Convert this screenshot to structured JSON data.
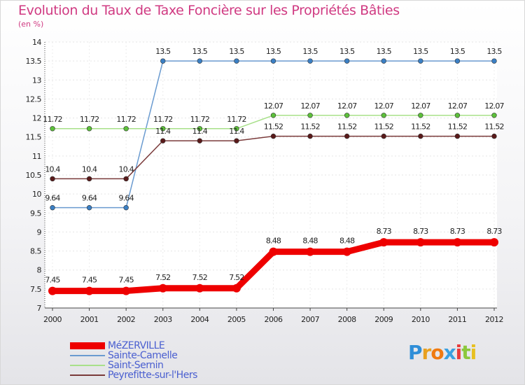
{
  "title": "Evolution du Taux de Taxe Foncière sur les Propriétés Bâties",
  "subtitle": "(en %)",
  "logo": {
    "letters": [
      "P",
      "r",
      "o",
      "x",
      "i",
      "t",
      "i"
    ],
    "colors": [
      "#2f8ed8",
      "#e8a020",
      "#f07a10",
      "#3aa0e0",
      "#e83c3c",
      "#8cc83c",
      "#e8c020"
    ]
  },
  "chart_data": {
    "type": "line",
    "title": "Evolution du Taux de Taxe Foncière sur les Propriétés Bâties",
    "ylabel": "(en %)",
    "xlabel": "",
    "ylim": [
      7,
      14
    ],
    "yticks": [
      "7",
      "7.5",
      "8",
      "8.5",
      "9",
      "9.5",
      "10",
      "10.5",
      "11",
      "11.5",
      "12",
      "12.5",
      "13",
      "13.5",
      "14"
    ],
    "x": [
      "2000",
      "2001",
      "2002",
      "2003",
      "2004",
      "2005",
      "2006",
      "2007",
      "2008",
      "2009",
      "2010",
      "2011",
      "2012"
    ],
    "grid": true,
    "legend": "bottom-left",
    "series": [
      {
        "name": "Sainte-Camelle",
        "color": "#6a9bd0",
        "marker": "#3a7fc4",
        "width": "thin",
        "values": [
          9.64,
          9.64,
          9.64,
          13.5,
          13.5,
          13.5,
          13.5,
          13.5,
          13.5,
          13.5,
          13.5,
          13.5,
          13.5
        ],
        "labels": [
          "9.64",
          "9.64",
          "9.64",
          "13.5",
          "13.5",
          "13.5",
          "13.5",
          "13.5",
          "13.5",
          "13.5",
          "13.5",
          "13.5",
          "13.5"
        ]
      },
      {
        "name": "Saint-Sernin",
        "color": "#a8e08a",
        "marker": "#5cc03a",
        "width": "thin",
        "values": [
          11.72,
          11.72,
          11.72,
          11.72,
          11.72,
          11.72,
          12.07,
          12.07,
          12.07,
          12.07,
          12.07,
          12.07,
          12.07
        ],
        "labels": [
          "11.72",
          "11.72",
          "11.72",
          "11.72",
          "11.72",
          "11.72",
          "12.07",
          "12.07",
          "12.07",
          "12.07",
          "12.07",
          "12.07",
          "12.07"
        ]
      },
      {
        "name": "Peyrefitte-sur-l'Hers",
        "color": "#7a3a3a",
        "marker": "#5a1a1a",
        "width": "thin",
        "values": [
          10.4,
          10.4,
          10.4,
          11.4,
          11.4,
          11.4,
          11.52,
          11.52,
          11.52,
          11.52,
          11.52,
          11.52,
          11.52
        ],
        "labels": [
          "10.4",
          "10.4",
          "10.4",
          "11.4",
          "11.4",
          "11.4",
          "11.52",
          "11.52",
          "11.52",
          "11.52",
          "11.52",
          "11.52",
          "11.52"
        ]
      },
      {
        "name": "MéZERVILLE",
        "color": "#ee0000",
        "marker": "#ee0000",
        "width": "thick",
        "values": [
          7.45,
          7.45,
          7.45,
          7.52,
          7.52,
          7.52,
          8.48,
          8.48,
          8.48,
          8.73,
          8.73,
          8.73,
          8.73
        ],
        "labels": [
          "7.45",
          "7.45",
          "7.45",
          "7.52",
          "7.52",
          "7.52",
          "8.48",
          "8.48",
          "8.48",
          "8.73",
          "8.73",
          "8.73",
          "8.73"
        ]
      }
    ],
    "legend_order": [
      "MéZERVILLE",
      "Sainte-Camelle",
      "Saint-Sernin",
      "Peyrefitte-sur-l'Hers"
    ]
  }
}
